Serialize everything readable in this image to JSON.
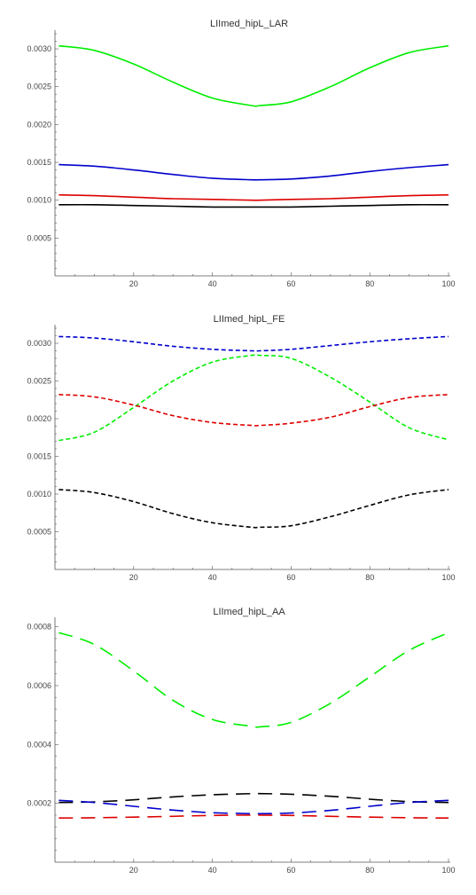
{
  "chart_data": [
    {
      "type": "line",
      "title": "LIImed_hipL_LAR",
      "xlabel": "",
      "ylabel": "",
      "xlim": [
        0,
        100
      ],
      "ylim": [
        0,
        0.0032
      ],
      "x_ticks": [
        20,
        40,
        60,
        80,
        100
      ],
      "x_tick_labels": [
        "20",
        "40",
        "60",
        "80",
        "100"
      ],
      "y_ticks": [
        0.0005,
        0.001,
        0.0015,
        0.002,
        0.0025,
        0.003
      ],
      "y_tick_labels": [
        "0.0005",
        "0.0010",
        "0.0015",
        "0.0020",
        "0.0025",
        "0.0030"
      ],
      "grid": false,
      "x": [
        1,
        10,
        20,
        30,
        40,
        50,
        52,
        60,
        70,
        80,
        90,
        100
      ],
      "series": [
        {
          "color": "#00ee00",
          "dash": "solid",
          "values": [
            0.00304,
            0.00298,
            0.0028,
            0.00256,
            0.00235,
            0.00225,
            0.00225,
            0.0023,
            0.0025,
            0.00275,
            0.00295,
            0.00304
          ]
        },
        {
          "color": "#0000cc",
          "dash": "solid",
          "values": [
            0.00147,
            0.00145,
            0.0014,
            0.00134,
            0.00129,
            0.00127,
            0.00127,
            0.00128,
            0.00132,
            0.00138,
            0.00143,
            0.00147
          ]
        },
        {
          "color": "#dd0000",
          "dash": "solid",
          "values": [
            0.00107,
            0.00106,
            0.00104,
            0.00102,
            0.00101,
            0.001,
            0.001,
            0.00101,
            0.00102,
            0.00104,
            0.00106,
            0.00107
          ]
        },
        {
          "color": "#000000",
          "dash": "solid",
          "values": [
            0.00094,
            0.00094,
            0.00093,
            0.00092,
            0.00091,
            0.00091,
            0.00091,
            0.00091,
            0.00092,
            0.00093,
            0.00094,
            0.00094
          ]
        }
      ]
    },
    {
      "type": "line",
      "title": "LIImed_hipL_FE",
      "xlabel": "",
      "ylabel": "",
      "xlim": [
        0,
        100
      ],
      "ylim": [
        0,
        0.0032
      ],
      "x_ticks": [
        20,
        40,
        60,
        80,
        100
      ],
      "x_tick_labels": [
        "20",
        "40",
        "60",
        "80",
        "100"
      ],
      "y_ticks": [
        0.0005,
        0.001,
        0.0015,
        0.002,
        0.0025,
        0.003
      ],
      "y_tick_labels": [
        "0.0005",
        "0.0010",
        "0.0015",
        "0.0020",
        "0.0025",
        "0.0030"
      ],
      "grid": false,
      "x": [
        1,
        10,
        20,
        30,
        40,
        50,
        52,
        60,
        70,
        80,
        90,
        100
      ],
      "series": [
        {
          "color": "#0000cc",
          "dash": "short",
          "values": [
            0.00309,
            0.00307,
            0.00302,
            0.00296,
            0.00292,
            0.0029,
            0.0029,
            0.00292,
            0.00297,
            0.00302,
            0.00306,
            0.00309
          ]
        },
        {
          "color": "#00ee00",
          "dash": "short",
          "values": [
            0.00171,
            0.00182,
            0.00215,
            0.0025,
            0.00275,
            0.00284,
            0.00284,
            0.0028,
            0.00255,
            0.00222,
            0.00188,
            0.00172
          ]
        },
        {
          "color": "#dd0000",
          "dash": "short",
          "values": [
            0.00232,
            0.00229,
            0.00218,
            0.00204,
            0.00195,
            0.00191,
            0.00191,
            0.00194,
            0.00202,
            0.00216,
            0.00228,
            0.00232
          ]
        },
        {
          "color": "#000000",
          "dash": "short",
          "values": [
            0.00106,
            0.00102,
            0.0009,
            0.00074,
            0.00062,
            0.00056,
            0.00056,
            0.00058,
            0.0007,
            0.00085,
            0.00099,
            0.00106
          ]
        }
      ]
    },
    {
      "type": "line",
      "title": "LIImed_hipL_AA",
      "xlabel": "",
      "ylabel": "",
      "xlim": [
        0,
        100
      ],
      "ylim": [
        0,
        0.00082
      ],
      "x_ticks": [
        20,
        40,
        60,
        80,
        100
      ],
      "x_tick_labels": [
        "20",
        "40",
        "60",
        "80",
        "100"
      ],
      "y_ticks": [
        0.0002,
        0.0004,
        0.0006,
        0.0008
      ],
      "y_tick_labels": [
        "0.0002",
        "0.0004",
        "0.0006",
        "0.0008"
      ],
      "grid": false,
      "x": [
        1,
        10,
        20,
        30,
        40,
        50,
        52,
        60,
        70,
        80,
        90,
        100
      ],
      "series": [
        {
          "color": "#00ee00",
          "dash": "long",
          "values": [
            0.00078,
            0.00074,
            0.00065,
            0.00055,
            0.000485,
            0.000462,
            0.00046,
            0.000475,
            0.00054,
            0.00063,
            0.00072,
            0.00078
          ]
        },
        {
          "color": "#000000",
          "dash": "long",
          "values": [
            0.000203,
            0.000205,
            0.000212,
            0.000222,
            0.000229,
            0.000233,
            0.000233,
            0.000231,
            0.000224,
            0.000214,
            0.000206,
            0.000203
          ]
        },
        {
          "color": "#0000cc",
          "dash": "long",
          "values": [
            0.00021,
            0.000203,
            0.00019,
            0.000177,
            0.000168,
            0.000165,
            0.000165,
            0.000167,
            0.000176,
            0.00019,
            0.000203,
            0.00021
          ]
        },
        {
          "color": "#dd0000",
          "dash": "long",
          "values": [
            0.00015,
            0.000151,
            0.000153,
            0.000156,
            0.000159,
            0.00016,
            0.00016,
            0.000159,
            0.000156,
            0.000153,
            0.000151,
            0.00015
          ]
        }
      ]
    }
  ]
}
